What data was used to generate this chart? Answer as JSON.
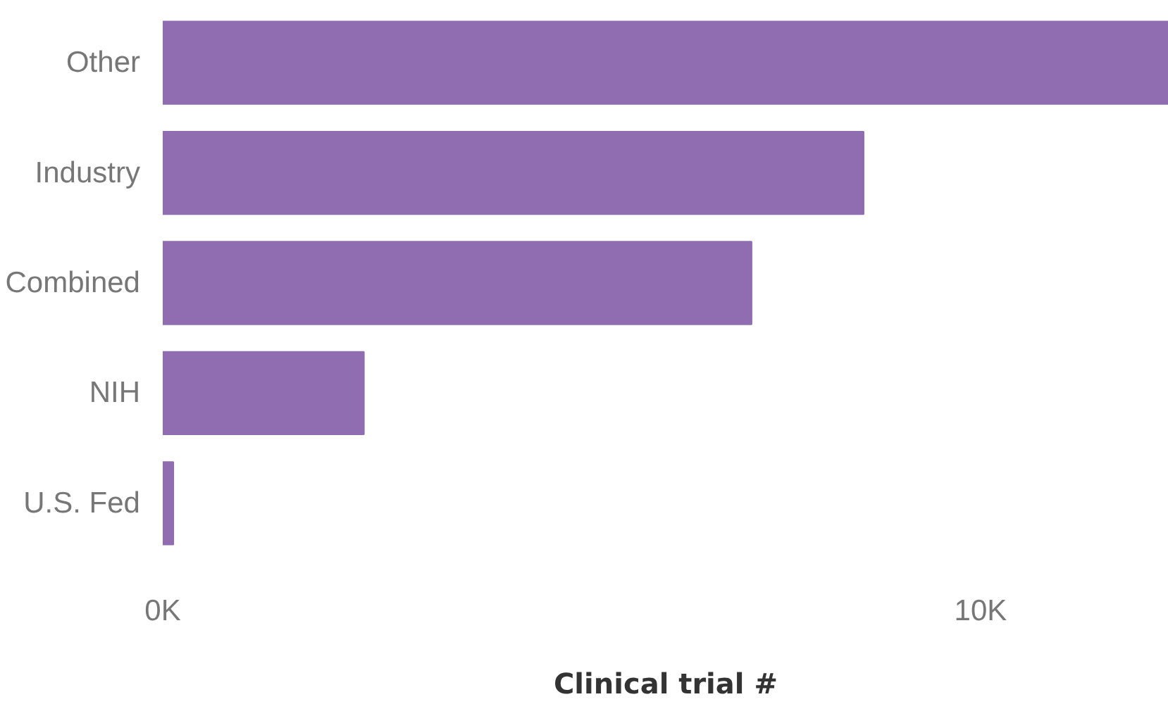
{
  "chart_data": {
    "type": "bar",
    "orientation": "horizontal",
    "categories": [
      "Other",
      "Industry",
      "Combined",
      "NIH",
      "U.S. Fed"
    ],
    "values": [
      12300,
      8570,
      7200,
      2460,
      130
    ],
    "color": "#8f6db0",
    "xlabel": "Clinical trial #",
    "xlim": [
      0,
      12300
    ],
    "xticks": [
      {
        "value": 0,
        "label": "0K"
      },
      {
        "value": 10000,
        "label": "10K"
      }
    ]
  }
}
